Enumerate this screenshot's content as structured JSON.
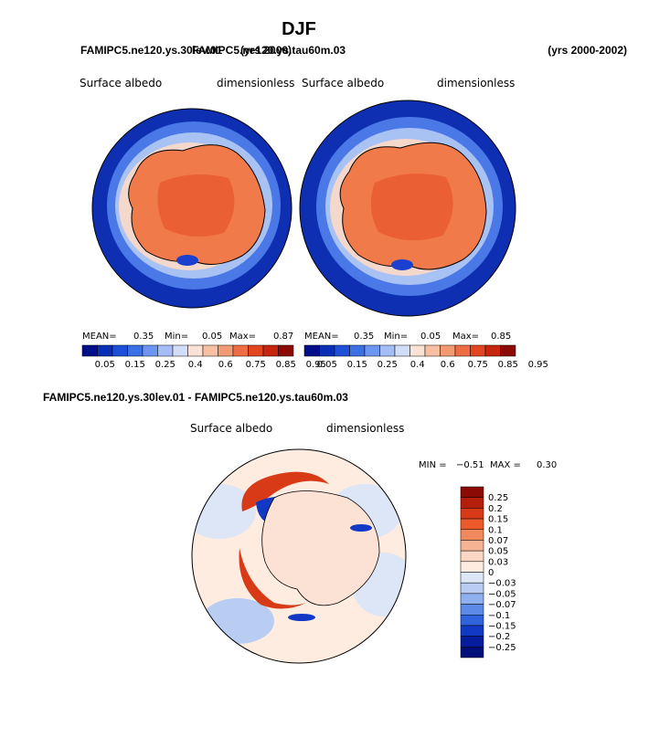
{
  "figure": {
    "title": "DJF",
    "subtitle_left": "FAMIPC5.ne120.ys.30lev.01",
    "subtitle_overlap": "FAMIPC5.ne120.ys.tau60m.03",
    "subtitle_years_overlap": "(yrs 2000)",
    "subtitle_right": "(yrs 2000-2002)",
    "diff_title": "FAMIPC5.ne120.ys.30lev.01 - FAMIPC5.ne120.ys.tau60m.03"
  },
  "chart_data": [
    {
      "type": "heatmap",
      "projection": "south-polar-stereographic",
      "title": "Surface albedo",
      "units": "dimensionless",
      "stats": {
        "mean_label": "MEAN=",
        "mean": "0.35",
        "min_label": "Min=",
        "min": "0.05",
        "max_label": "Max=",
        "max": "0.87"
      },
      "colorbar_levels": [
        "0.05",
        "0.15",
        "0.25",
        "0.4",
        "0.6",
        "0.75",
        "0.85",
        "0.95"
      ],
      "colorbar_colors": [
        "#000e8c",
        "#0a2fb7",
        "#1d4fd8",
        "#3b6fe6",
        "#6d95f2",
        "#a4bdf6",
        "#d2def7",
        "#fbe2d4",
        "#f8c0a2",
        "#f39a73",
        "#ee6d44",
        "#e34521",
        "#c4260e",
        "#8c0a05"
      ]
    },
    {
      "type": "heatmap",
      "projection": "south-polar-stereographic",
      "title": "Surface albedo",
      "units": "dimensionless",
      "stats": {
        "mean_label": "MEAN=",
        "mean": "0.35",
        "min_label": "Min=",
        "min": "0.05",
        "max_label": "Max=",
        "max": "0.85"
      },
      "colorbar_levels": [
        "0.05",
        "0.15",
        "0.25",
        "0.4",
        "0.6",
        "0.75",
        "0.85",
        "0.95"
      ],
      "colorbar_colors": [
        "#000e8c",
        "#0a2fb7",
        "#1d4fd8",
        "#3b6fe6",
        "#6d95f2",
        "#a4bdf6",
        "#d2def7",
        "#fbe2d4",
        "#f8c0a2",
        "#f39a73",
        "#ee6d44",
        "#e34521",
        "#c4260e",
        "#8c0a05"
      ]
    },
    {
      "type": "heatmap",
      "projection": "south-polar-stereographic",
      "title": "Surface albedo",
      "units": "dimensionless",
      "stats": {
        "min_label": "MIN =",
        "min": "−0.51",
        "max_label": "MAX =",
        "max": "0.30"
      },
      "colorbar_levels": [
        "0.25",
        "0.2",
        "0.15",
        "0.1",
        "0.07",
        "0.05",
        "0.03",
        "0",
        "−0.03",
        "−0.05",
        "−0.07",
        "−0.1",
        "−0.15",
        "−0.2",
        "−0.25"
      ],
      "colorbar_colors": [
        "#8c0a05",
        "#b51d0c",
        "#d83a18",
        "#ec5a2c",
        "#f08a5e",
        "#f6b393",
        "#fbd6c2",
        "#fdecdf",
        "#dde6f6",
        "#b9cdf3",
        "#8fb0ef",
        "#5d8ae6",
        "#3163dc",
        "#1238c6",
        "#061c9c",
        "#000e7a"
      ]
    }
  ]
}
